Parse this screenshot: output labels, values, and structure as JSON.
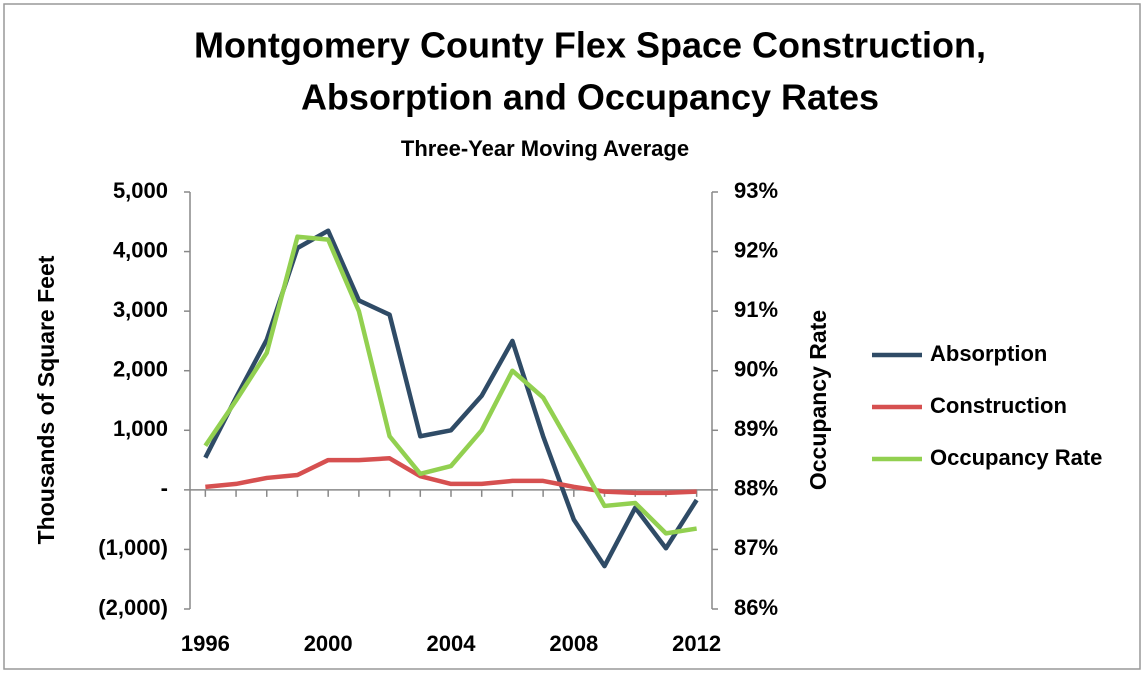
{
  "chart_data": {
    "type": "line",
    "title": [
      "Montgomery County Flex Space Construction,",
      "Absorption and Occupancy Rates"
    ],
    "subtitle": "Three-Year Moving Average",
    "y_label": "Thousands of Square Feet",
    "y2_label": "Occupancy Rate",
    "x": [
      1996,
      1997,
      1998,
      1999,
      2000,
      2001,
      2002,
      2003,
      2004,
      2005,
      2006,
      2007,
      2008,
      2009,
      2010,
      2011,
      2012
    ],
    "xlim": [
      1995.5,
      2012.5
    ],
    "xticks": [
      1996,
      2000,
      2004,
      2008,
      2012
    ],
    "ylim": [
      -2000,
      5000
    ],
    "yticks": [
      {
        "value": -2000,
        "label": "(2,000)"
      },
      {
        "value": -1000,
        "label": "(1,000)"
      },
      {
        "value": 0,
        "label": "-"
      },
      {
        "value": 1000,
        "label": "1,000"
      },
      {
        "value": 2000,
        "label": "2,000"
      },
      {
        "value": 3000,
        "label": "3,000"
      },
      {
        "value": 4000,
        "label": "4,000"
      },
      {
        "value": 5000,
        "label": "5,000"
      }
    ],
    "y2lim": [
      86,
      93
    ],
    "y2ticks": [
      {
        "value": 86,
        "label": "86%"
      },
      {
        "value": 87,
        "label": "87%"
      },
      {
        "value": 88,
        "label": "88%"
      },
      {
        "value": 89,
        "label": "89%"
      },
      {
        "value": 90,
        "label": "90%"
      },
      {
        "value": 91,
        "label": "91%"
      },
      {
        "value": 92,
        "label": "92%"
      },
      {
        "value": 93,
        "label": "93%"
      }
    ],
    "grid": false,
    "legend": "right",
    "series": [
      {
        "name": "Absorption",
        "color": "#2f4b66",
        "values": [
          540,
          1550,
          2520,
          4060,
          4350,
          3180,
          2940,
          900,
          1000,
          1580,
          2500,
          900,
          -500,
          -1280,
          -300,
          -980,
          -170
        ]
      },
      {
        "name": "Construction",
        "color": "#d65050",
        "values": [
          50,
          100,
          200,
          250,
          500,
          500,
          530,
          230,
          100,
          100,
          150,
          150,
          50,
          -30,
          -50,
          -50,
          -30
        ]
      },
      {
        "name": "Occupancy Rate",
        "color": "#92d050",
        "axis": "y2",
        "values": [
          88.74,
          89.5,
          90.3,
          92.25,
          92.2,
          91.0,
          88.9,
          88.27,
          88.4,
          89.0,
          90.0,
          89.55,
          88.65,
          87.73,
          87.78,
          87.27,
          87.35
        ]
      }
    ]
  }
}
